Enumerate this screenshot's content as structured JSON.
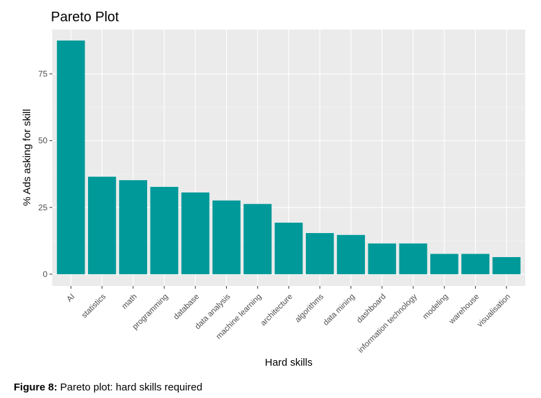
{
  "caption": {
    "label": "Figure 8:",
    "text": " Pareto plot: hard skills required"
  },
  "colors": {
    "bar": "#009999",
    "panel": "#ebebeb",
    "grid_major": "#ffffff",
    "grid_minor": "#f5f5f5",
    "tick_text": "#4d4d4d"
  },
  "chart_data": {
    "type": "bar",
    "title": "Pareto Plot",
    "xlabel": "Hard skills",
    "ylabel": "% Ads asking for skill",
    "categories": [
      "AI",
      "statistics",
      "math",
      "programming",
      "database",
      "data analysis",
      "machine learning",
      "architecture",
      "algorithms",
      "data mining",
      "dashboard",
      "information technology",
      "modeling",
      "warehouse",
      "visualisation"
    ],
    "values": [
      87.5,
      36.5,
      35.2,
      32.7,
      30.6,
      27.6,
      26.3,
      19.3,
      15.4,
      14.7,
      11.5,
      11.5,
      7.6,
      7.6,
      6.4
    ],
    "ylim": [
      -4.4,
      91.6
    ],
    "yticks": [
      0,
      25,
      50,
      75
    ],
    "grid": true,
    "legend": "none"
  }
}
